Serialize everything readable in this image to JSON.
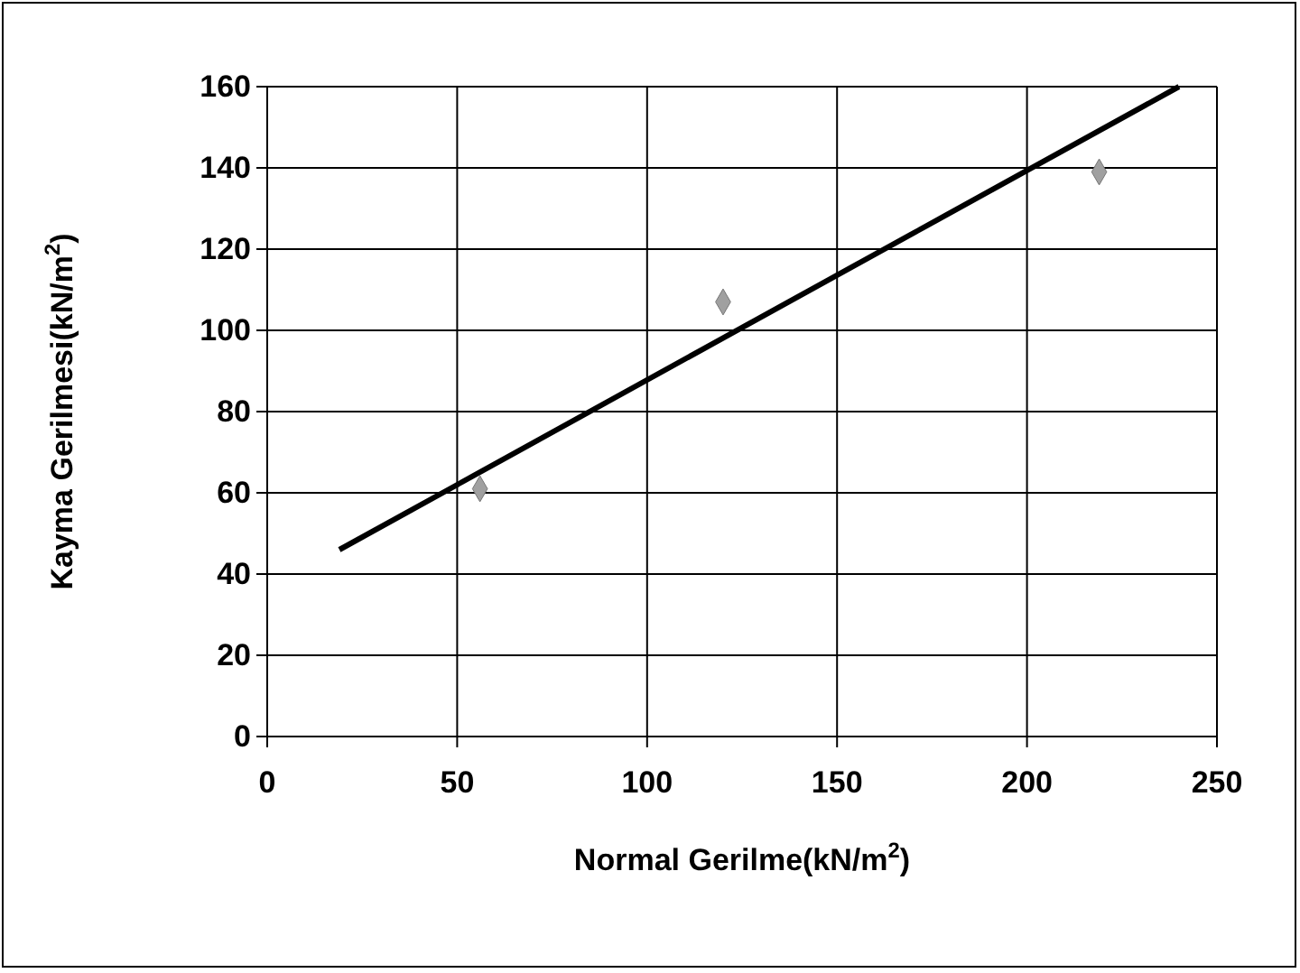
{
  "chart_data": {
    "type": "scatter",
    "xlabel": "Normal Gerilme(kN/m$^{2}$)",
    "ylabel": "Kayma Gerilmesi(kN/m$^{2}$)",
    "xlim": [
      0,
      250
    ],
    "xticks": [
      0,
      50,
      100,
      150,
      200,
      250
    ],
    "ylim": [
      0,
      160
    ],
    "yticks": [
      0,
      20,
      40,
      60,
      80,
      100,
      120,
      140,
      160
    ],
    "grid": true,
    "marker": "diamond",
    "series": [
      {
        "color": "#a0a0a0",
        "x": [
          56,
          120,
          219
        ],
        "values": [
          61,
          107,
          139
        ]
      },
      {
        "type": "line",
        "color": "#000000",
        "x": [
          19,
          240
        ],
        "values": [
          46,
          160
        ],
        "marker": "none"
      }
    ]
  }
}
